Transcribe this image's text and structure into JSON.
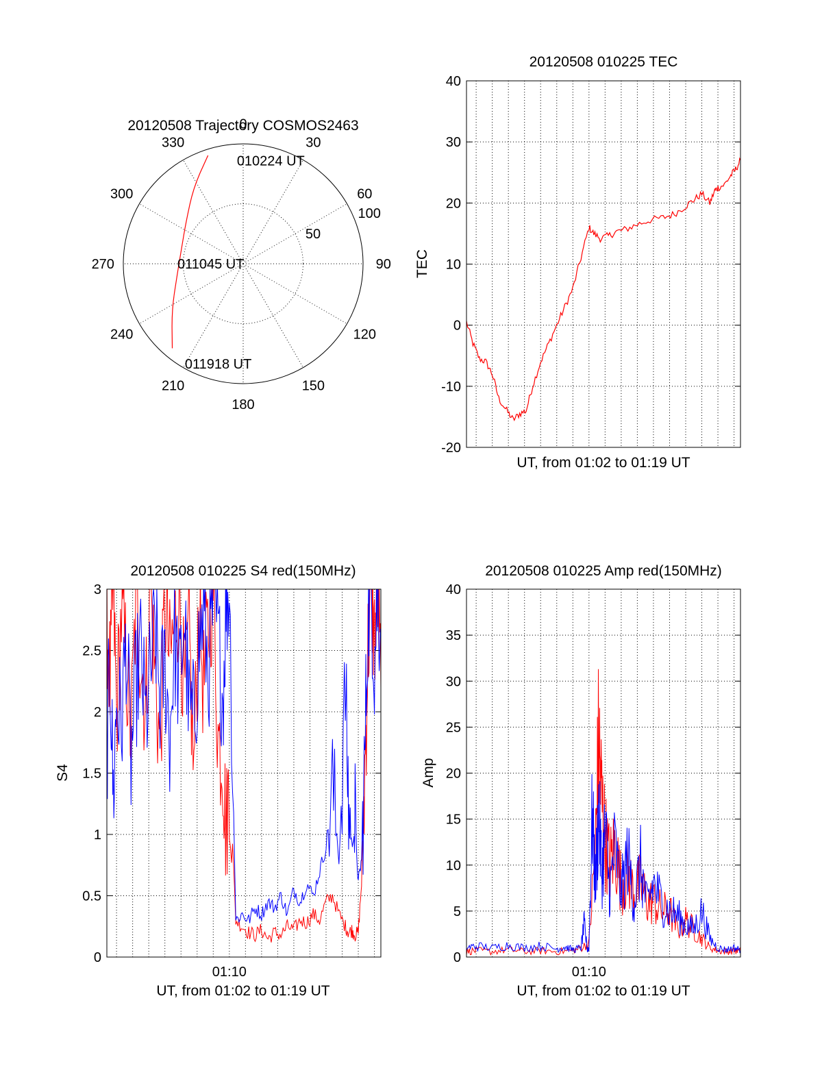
{
  "chart_data": [
    {
      "id": "polar",
      "type": "polar-trajectory",
      "title": "20120508 Trajectory COSMOS2463",
      "azimuth_labels": [
        {
          "deg": 0,
          "label": "0"
        },
        {
          "deg": 30,
          "label": "30"
        },
        {
          "deg": 60,
          "label": "60"
        },
        {
          "deg": 90,
          "label": "90"
        },
        {
          "deg": 120,
          "label": "120"
        },
        {
          "deg": 150,
          "label": "150"
        },
        {
          "deg": 180,
          "label": "180"
        },
        {
          "deg": 210,
          "label": "210"
        },
        {
          "deg": 240,
          "label": "240"
        },
        {
          "deg": 270,
          "label": "270"
        },
        {
          "deg": 300,
          "label": "300"
        },
        {
          "deg": 330,
          "label": "330"
        }
      ],
      "radial_rings": [
        50,
        100
      ],
      "radial_labels": [
        {
          "value": 50,
          "label": "50"
        },
        {
          "value": 100,
          "label": "100"
        }
      ],
      "trajectory_color": "#ff0000",
      "trajectory": [
        {
          "az": 342,
          "r": 95
        },
        {
          "az": 327,
          "r": 76
        },
        {
          "az": 306,
          "r": 59
        },
        {
          "az": 284,
          "r": 53
        },
        {
          "az": 260,
          "r": 56
        },
        {
          "az": 237,
          "r": 71
        },
        {
          "az": 220,
          "r": 92
        }
      ],
      "annotations": [
        {
          "label": "010224 UT",
          "az": 15,
          "r": 89
        },
        {
          "label": "011045 UT",
          "az": 270,
          "r": 27
        },
        {
          "label": "011918 UT",
          "az": 194,
          "r": 86
        }
      ]
    },
    {
      "id": "tec",
      "type": "line",
      "title": "20120508 010225 TEC",
      "xlabel": "UT, from 01:02 to 01:19 UT",
      "ylabel": "TEC",
      "xlim": [
        62.4,
        79.4
      ],
      "ylim": [
        -20,
        40
      ],
      "yticks": [
        -20,
        -10,
        0,
        10,
        20,
        30,
        40
      ],
      "xgrid": [
        63,
        64,
        65,
        66,
        67,
        68,
        69,
        70,
        71,
        72,
        73,
        74,
        75,
        76,
        77,
        78,
        79
      ],
      "series": [
        {
          "color": "#ff0000",
          "x": [
            62.4,
            62.8,
            63.2,
            63.6,
            64.0,
            64.4,
            64.9,
            65.3,
            65.7,
            66.1,
            66.5,
            67.0,
            67.5,
            68.0,
            68.5,
            69.0,
            69.5,
            70.0,
            70.3,
            70.7,
            71.2,
            71.7,
            72.3,
            73.0,
            73.8,
            74.6,
            75.3,
            76.0,
            76.5,
            77.0,
            77.5,
            77.8,
            78.0,
            78.4,
            78.8,
            79.1,
            79.4
          ],
          "y": [
            0.5,
            -3,
            -5.5,
            -6,
            -8,
            -12,
            -14,
            -15.5,
            -14.5,
            -14,
            -10,
            -6,
            -3,
            0,
            3,
            6,
            11,
            16,
            15,
            14.2,
            14.6,
            15.3,
            15.7,
            16.5,
            17.2,
            17.6,
            18.2,
            19.5,
            20.5,
            21.5,
            20,
            22,
            22.5,
            23,
            24.5,
            25.5,
            27
          ]
        }
      ]
    },
    {
      "id": "s4",
      "type": "line",
      "title": "20120508 010225 S4 red(150MHz)",
      "xlabel": "UT, from 01:02 to 01:19 UT",
      "ylabel": "S4",
      "xlim": [
        62.4,
        79.4
      ],
      "ylim": [
        0,
        3
      ],
      "yticks": [
        0,
        0.5,
        1,
        1.5,
        2,
        2.5,
        3
      ],
      "ytick_labels": [
        "0",
        "0.5",
        "1",
        "1.5",
        "2",
        "2.5",
        "3"
      ],
      "xticks": [
        {
          "value": 70.0,
          "label": "01:10"
        }
      ],
      "xgrid": [
        63,
        64,
        65,
        66,
        67,
        68,
        69,
        70,
        71,
        72,
        73,
        74,
        75,
        76,
        77,
        78,
        79
      ],
      "series": [
        {
          "color": "#ff0000",
          "x": [
            62.4,
            62.6,
            62.8,
            63.0,
            63.3,
            63.6,
            63.9,
            64.2,
            64.5,
            64.8,
            65.1,
            65.4,
            65.7,
            66.0,
            66.3,
            66.6,
            66.9,
            67.2,
            67.5,
            67.8,
            68.1,
            68.4,
            68.7,
            69.0,
            69.3,
            69.6,
            69.8,
            70.0,
            70.4,
            70.8,
            71.2,
            71.6,
            72.0,
            72.4,
            72.8,
            73.2,
            73.6,
            74.0,
            74.4,
            74.8,
            75.2,
            75.6,
            76.0,
            76.4,
            76.8,
            77.2,
            77.4,
            77.6,
            77.8,
            78.0,
            78.2,
            78.4,
            78.6,
            78.8,
            79.0,
            79.2,
            79.4
          ],
          "y": [
            2.8,
            2.2,
            3.0,
            2.0,
            2.8,
            2.4,
            1.8,
            2.9,
            2.5,
            2.0,
            3.0,
            2.3,
            1.7,
            2.9,
            2.4,
            2.7,
            3.0,
            2.1,
            2.6,
            1.5,
            2.9,
            2.2,
            2.7,
            3.0,
            1.8,
            1.6,
            1.0,
            1.5,
            0.3,
            0.25,
            0.2,
            0.18,
            0.22,
            0.15,
            0.2,
            0.18,
            0.25,
            0.22,
            0.3,
            0.28,
            0.35,
            0.3,
            0.45,
            0.5,
            0.35,
            0.25,
            0.2,
            0.22,
            0.18,
            0.2,
            0.6,
            1.5,
            2.5,
            3.0,
            2.6,
            3.0,
            2.2
          ]
        },
        {
          "color": "#0000ff",
          "x": [
            62.4,
            62.6,
            62.8,
            63.0,
            63.3,
            63.6,
            63.9,
            64.2,
            64.5,
            64.8,
            65.1,
            65.4,
            65.7,
            66.0,
            66.3,
            66.6,
            66.9,
            67.2,
            67.5,
            67.8,
            68.1,
            68.4,
            68.7,
            69.0,
            69.3,
            69.6,
            69.8,
            70.0,
            70.4,
            70.8,
            71.2,
            71.6,
            72.0,
            72.4,
            72.8,
            73.2,
            73.6,
            74.0,
            74.4,
            74.8,
            75.2,
            75.6,
            76.0,
            76.4,
            76.8,
            77.2,
            77.4,
            77.6,
            77.8,
            78.0,
            78.2,
            78.4,
            78.6,
            78.8,
            79.0,
            79.2,
            79.4
          ],
          "y": [
            1.7,
            2.4,
            1.3,
            2.1,
            1.9,
            2.6,
            1.6,
            2.2,
            2.5,
            1.9,
            2.3,
            2.7,
            2.1,
            2.4,
            1.8,
            2.6,
            2.2,
            2.8,
            2.0,
            1.9,
            2.5,
            2.8,
            2.3,
            2.9,
            2.6,
            2.1,
            2.9,
            3.0,
            0.3,
            0.35,
            0.3,
            0.4,
            0.35,
            0.45,
            0.4,
            0.5,
            0.35,
            0.55,
            0.45,
            0.6,
            0.5,
            0.7,
            0.9,
            1.4,
            0.8,
            2.2,
            1.2,
            0.9,
            1.1,
            0.6,
            0.8,
            1.6,
            2.8,
            3.0,
            2.4,
            3.0,
            2.6
          ]
        }
      ]
    },
    {
      "id": "amp",
      "type": "line",
      "title": "20120508 010225 Amp red(150MHz)",
      "xlabel": "UT, from 01:02 to 01:19 UT",
      "ylabel": "Amp",
      "xlim": [
        62.4,
        79.4
      ],
      "ylim": [
        0,
        40
      ],
      "yticks": [
        0,
        5,
        10,
        15,
        20,
        25,
        30,
        35,
        40
      ],
      "xticks": [
        {
          "value": 70.0,
          "label": "01:10"
        }
      ],
      "xgrid": [
        63,
        64,
        65,
        66,
        67,
        68,
        69,
        70,
        71,
        72,
        73,
        74,
        75,
        76,
        77,
        78,
        79
      ],
      "series": [
        {
          "color": "#ff0000",
          "x": [
            62.4,
            63.0,
            64.0,
            65.0,
            66.0,
            67.0,
            68.0,
            69.0,
            69.5,
            70.0,
            70.4,
            70.6,
            70.8,
            71.0,
            71.3,
            71.6,
            72.0,
            72.4,
            72.8,
            73.2,
            73.6,
            74.0,
            74.5,
            75.0,
            75.5,
            76.0,
            76.5,
            77.0,
            77.5,
            78.0,
            78.5,
            79.0,
            79.4
          ],
          "y": [
            0.6,
            0.7,
            0.6,
            0.8,
            0.6,
            0.7,
            0.6,
            0.7,
            1.0,
            1.5,
            12,
            23.5,
            17,
            13,
            10,
            12,
            8,
            9,
            7,
            8,
            6,
            6,
            5,
            5,
            3,
            4,
            3,
            2,
            1,
            0.7,
            0.6,
            0.7,
            0.6
          ]
        },
        {
          "color": "#0000ff",
          "x": [
            62.4,
            63.0,
            64.0,
            65.0,
            66.0,
            67.0,
            68.0,
            68.5,
            69.0,
            69.5,
            69.7,
            69.9,
            70.0,
            70.2,
            70.4,
            70.6,
            70.8,
            71.0,
            71.3,
            71.6,
            72.0,
            72.4,
            72.8,
            73.2,
            73.6,
            74.0,
            74.5,
            75.0,
            75.5,
            76.0,
            76.5,
            77.0,
            77.5,
            78.0,
            78.5,
            79.0,
            79.4
          ],
          "y": [
            1.0,
            1.2,
            1.0,
            1.3,
            1.0,
            1.2,
            0.9,
            1.1,
            0.8,
            1.0,
            3.5,
            0.8,
            1.0,
            15.5,
            8,
            16,
            9,
            13.5,
            7,
            12,
            7,
            11,
            6,
            10,
            5.5,
            8,
            6,
            5,
            4.5,
            3.5,
            3,
            5,
            2,
            1,
            0.8,
            1.0,
            0.8
          ]
        }
      ]
    }
  ]
}
